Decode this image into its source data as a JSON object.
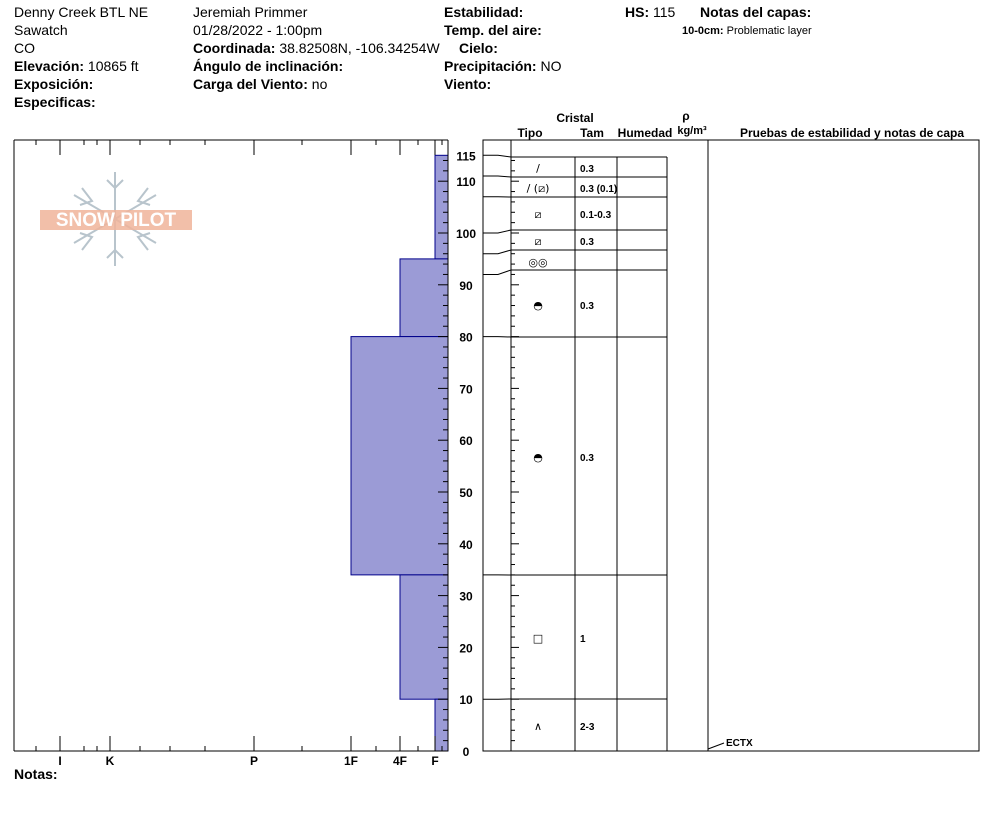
{
  "header": {
    "location": "Denny Creek BTL NE",
    "range": "Sawatch",
    "state": "CO",
    "elevation_label": "Elevación:",
    "elevation_value": "10865 ft",
    "aspect_label": "Exposición:",
    "specifics_label": "Especificas:",
    "observer": "Jeremiah Primmer",
    "datetime": "01/28/2022 - 1:00pm",
    "coord_label": "Coordinada:",
    "coord_value": "38.82508N, -106.34254W",
    "slope_label": "Ángulo de inclinación:",
    "wind_load_label": "Carga del Viento:",
    "wind_load_value": "no",
    "stability_label": "Estabilidad:",
    "air_temp_label": "Temp. del aire:",
    "sky_label": "Cielo:",
    "precip_label": "Precipitación:",
    "precip_value": "NO",
    "wind_label": "Viento:",
    "hs_label": "HS:",
    "hs_value": "115",
    "layer_notes_label": "Notas del capas:",
    "layer_note_depth": "10-0cm:",
    "layer_note_text": "Problematic layer"
  },
  "notes_label": "Notas:",
  "logo_text": "SNOW PILOT",
  "colors": {
    "hardness_fill": "#9b9bd6",
    "hardness_stroke": "#00008b",
    "logo": "#f0b49a",
    "flake": "#b8c4cc"
  },
  "chart_data": {
    "type": "snow-profile",
    "y_range": [
      0,
      115
    ],
    "y_ticks": [
      0,
      10,
      20,
      30,
      40,
      50,
      60,
      70,
      80,
      90,
      100,
      110,
      115
    ],
    "hardness_ticks": [
      "I",
      "K",
      "P",
      "1F",
      "4F",
      "F"
    ],
    "hardness_layers": [
      {
        "top": 115,
        "bottom": 95,
        "hardness": "F"
      },
      {
        "top": 95,
        "bottom": 80,
        "hardness": "4F"
      },
      {
        "top": 80,
        "bottom": 34,
        "hardness": "1F"
      },
      {
        "top": 34,
        "bottom": 10,
        "hardness": "4F"
      },
      {
        "top": 10,
        "bottom": 0,
        "hardness": "F"
      }
    ],
    "table_headers": {
      "crystal": "Cristal",
      "type": "Tipo",
      "size": "Tam",
      "moisture": "Humedad",
      "density_symbol": "ρ",
      "density_unit": "kg/m³",
      "tests": "Pruebas de estabilidad y notas de capa"
    },
    "layer_boundaries": [
      115,
      111,
      107,
      100,
      96,
      92,
      80,
      34,
      10,
      0
    ],
    "grain_rows": [
      {
        "y": 113,
        "symbol": "/",
        "size": "0.3"
      },
      {
        "y": 109,
        "symbol": "/ (⧄)",
        "size": "0.3 (0.1)"
      },
      {
        "y": 103.5,
        "symbol": "⧄",
        "size": "0.1-0.3"
      },
      {
        "y": 98,
        "symbol": "⧄",
        "size": "0.3"
      },
      {
        "y": 94,
        "symbol": "◎◎",
        "size": ""
      },
      {
        "y": 86,
        "symbol": "◓",
        "size": "0.3"
      },
      {
        "y": 57,
        "symbol": "◓",
        "size": "0.3"
      },
      {
        "y": 22,
        "symbol": "□",
        "size": "1"
      },
      {
        "y": 5,
        "symbol": "∧",
        "size": "2-3"
      }
    ],
    "tests": [
      {
        "depth": 0,
        "label": "ECTX"
      }
    ]
  }
}
